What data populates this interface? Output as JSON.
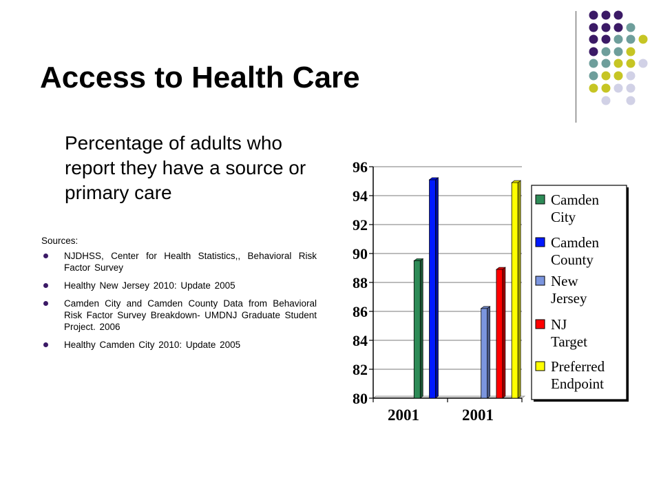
{
  "slide": {
    "title": "Access to Health Care",
    "subtitle": "Percentage of adults who report they have a source or primary care",
    "sources_heading": "Sources:",
    "sources": [
      "NJDHSS, Center for Health Statistics,, Behavioral Risk Factor Survey",
      "Healthy New Jersey 2010:  Update 2005",
      "Camden City and Camden County Data from Behavioral Risk Factor Survey Breakdown- UMDNJ Graduate Student Project. 2006",
      "Healthy Camden City 2010:  Update 2005"
    ],
    "decor_colors": {
      "purple": "#3b1a66",
      "teal": "#6e9e9b",
      "olive": "#c6c524",
      "lavender": "#d1d1e6"
    }
  },
  "chart_data": {
    "type": "bar",
    "categories": [
      "2001",
      "2001"
    ],
    "ylim": [
      80,
      96
    ],
    "yticks": [
      80,
      82,
      84,
      86,
      88,
      90,
      92,
      94,
      96
    ],
    "grid": true,
    "legend_position": "right",
    "series": [
      {
        "name": "Camden City",
        "values": [
          89.5,
          null
        ],
        "color": "#2e8b57"
      },
      {
        "name": "Camden County",
        "values": [
          95.1,
          null
        ],
        "color": "#0019ff"
      },
      {
        "name": "New Jersey",
        "values": [
          null,
          86.2
        ],
        "color": "#7b95de"
      },
      {
        "name": "NJ Target",
        "values": [
          null,
          88.9
        ],
        "color": "#ff0000"
      },
      {
        "name": "Preferred Endpoint",
        "values": [
          null,
          94.9
        ],
        "color": "#ffff00"
      }
    ]
  }
}
